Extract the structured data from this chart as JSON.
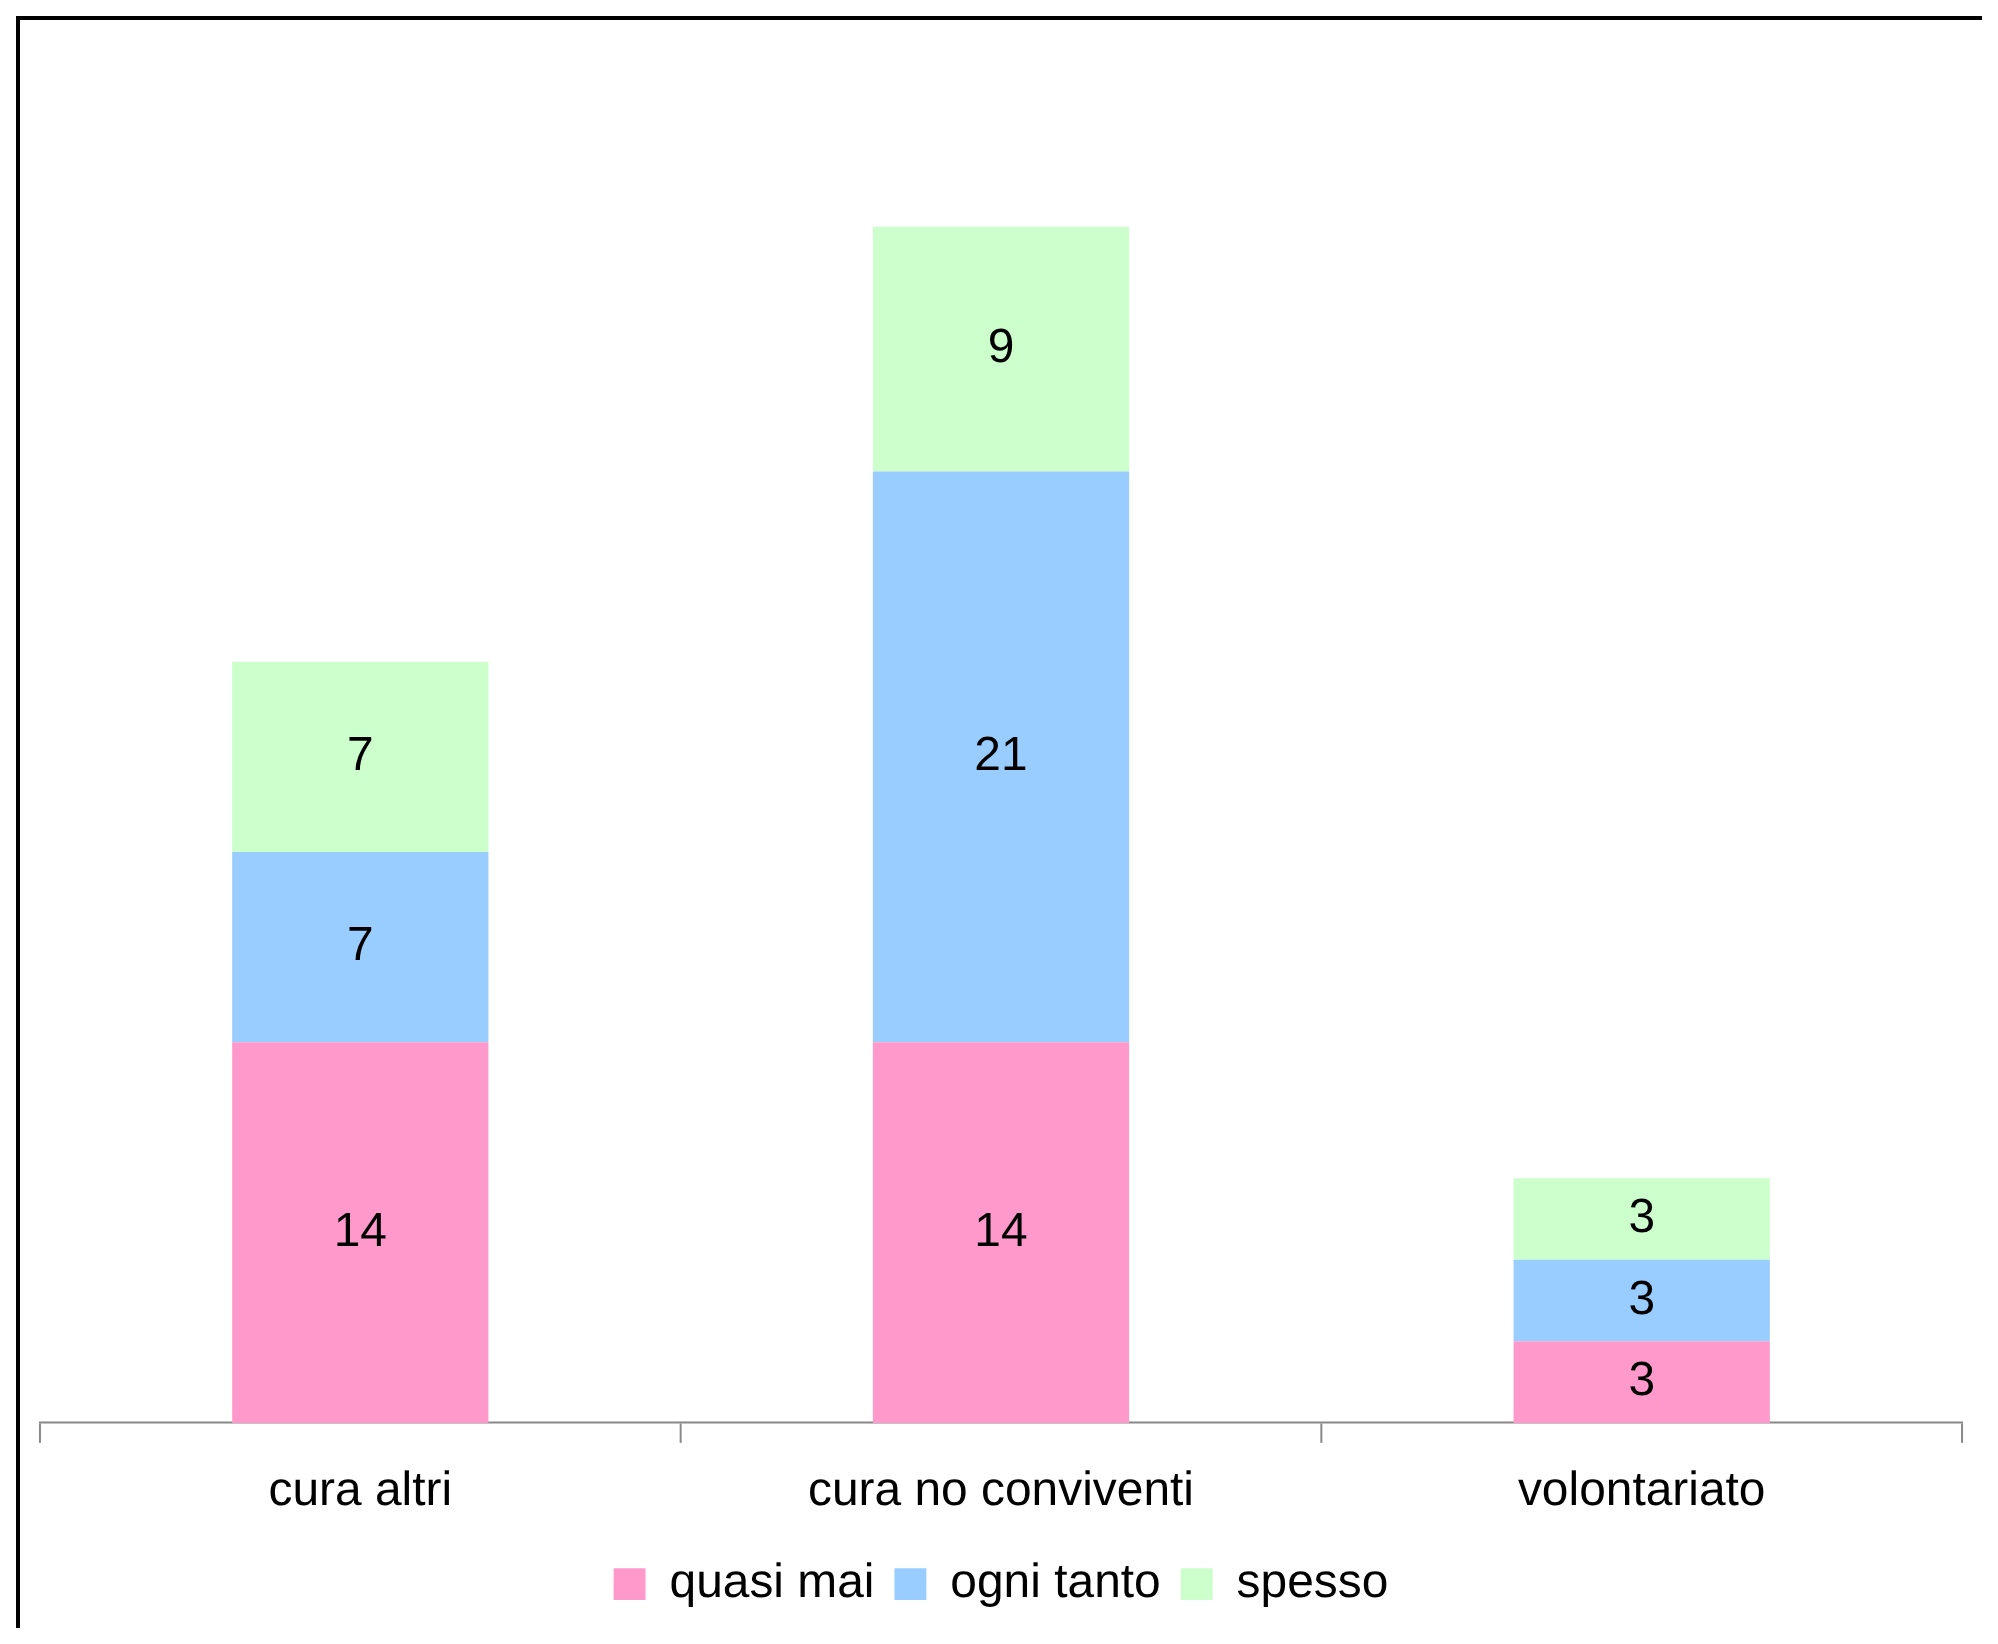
{
  "chart_data": {
    "type": "bar",
    "stacked": true,
    "categories": [
      "cura altri",
      "cura no conviventi",
      "volontariato"
    ],
    "series": [
      {
        "name": "quasi mai",
        "color": "#ff99cc",
        "values": [
          14,
          14,
          3
        ]
      },
      {
        "name": "ogni tanto",
        "color": "#99ccff",
        "values": [
          7,
          21,
          3
        ]
      },
      {
        "name": "spesso",
        "color": "#ccffcc",
        "values": [
          7,
          9,
          3
        ]
      }
    ],
    "data_labels": true,
    "legend": "bottom",
    "grid": false
  }
}
